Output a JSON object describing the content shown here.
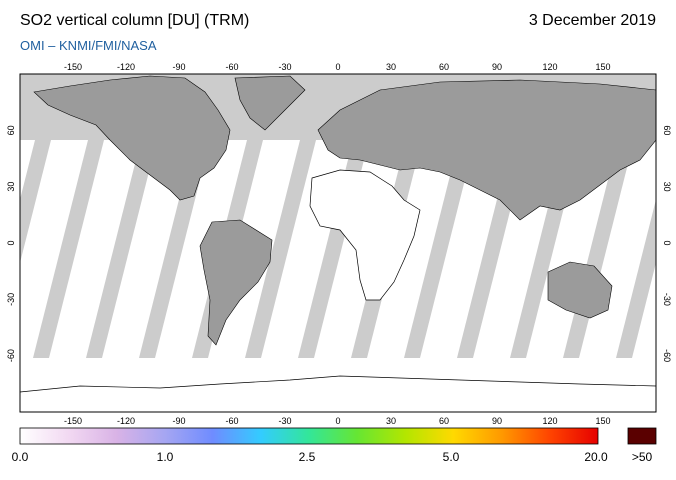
{
  "header": {
    "title": "SO2 vertical column [DU] (TRM)",
    "date": "3 December 2019",
    "credit": "OMI  –  KNMI/FMI/NASA"
  },
  "map": {
    "lon_ticks": [
      "-150",
      "-120",
      "-90",
      "-60",
      "-30",
      "0",
      "30",
      "60",
      "90",
      "120",
      "150"
    ],
    "lat_ticks": [
      "60",
      "30",
      "0",
      "-30",
      "-60"
    ],
    "colors": {
      "ocean": "#ffffff",
      "no_data": "#cccccc",
      "land": "#9b9b9b"
    }
  },
  "colorbar": {
    "labels": [
      "0.0",
      "1.0",
      "2.5",
      "5.0",
      "20.0"
    ],
    "overflow_label": ">50",
    "overflow_color": "#5a0000",
    "gradient": [
      "#ffffff",
      "#f2d9f2",
      "#d9b3e6",
      "#a6a6f2",
      "#6f8cff",
      "#33ccff",
      "#33e699",
      "#66e633",
      "#b3e600",
      "#ffd900",
      "#ff9900",
      "#ff4400",
      "#e60000"
    ]
  }
}
